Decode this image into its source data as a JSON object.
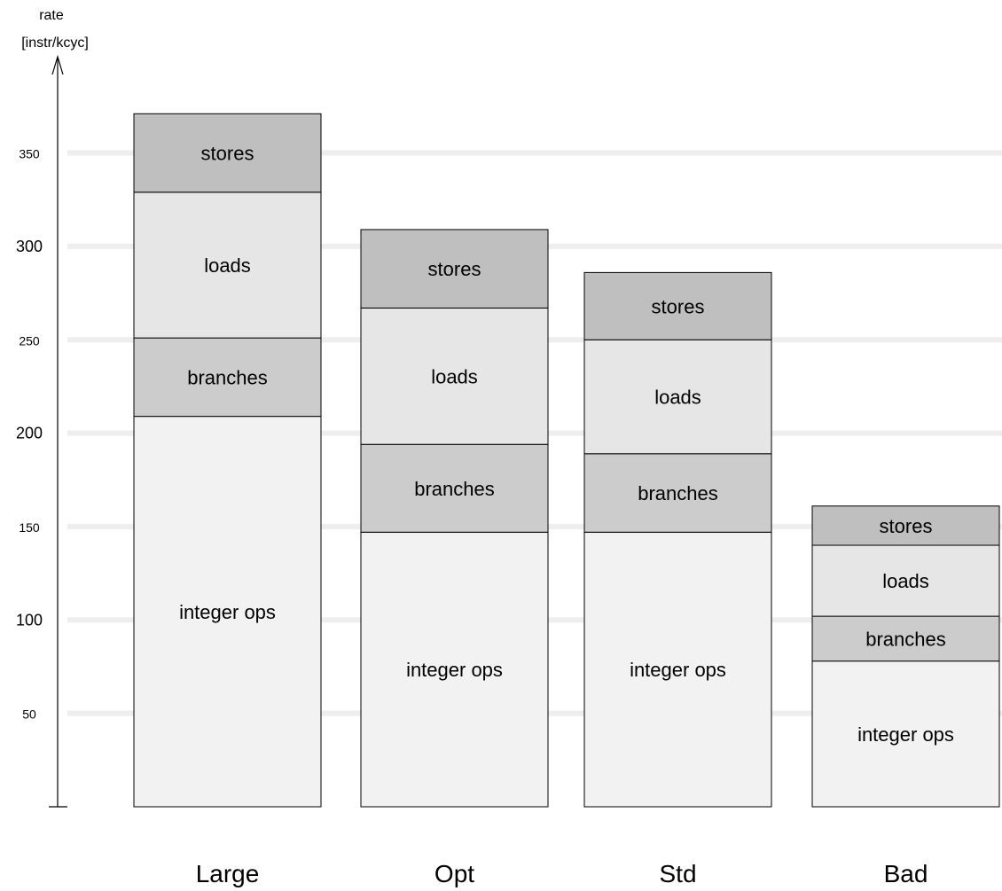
{
  "chart_data": {
    "type": "bar",
    "stacked": true,
    "ylabel": [
      "rate",
      "[instr/kcyc]"
    ],
    "ylim": [
      0,
      385
    ],
    "grid": true,
    "legend": "none",
    "yticks": [
      50,
      100,
      150,
      200,
      250,
      300,
      350
    ],
    "categories": [
      "Large",
      "Opt",
      "Std",
      "Bad"
    ],
    "series": [
      {
        "name": "integer ops",
        "color": "#f2f2f2",
        "values": [
          209,
          147,
          147,
          78
        ]
      },
      {
        "name": "branches",
        "color": "#cccccc",
        "values": [
          42,
          47,
          42,
          24
        ]
      },
      {
        "name": "loads",
        "color": "#e6e6e6",
        "values": [
          78,
          73,
          61,
          38
        ]
      },
      {
        "name": "stores",
        "color": "#bfbfbf",
        "values": [
          42,
          42,
          36,
          21
        ]
      }
    ]
  }
}
